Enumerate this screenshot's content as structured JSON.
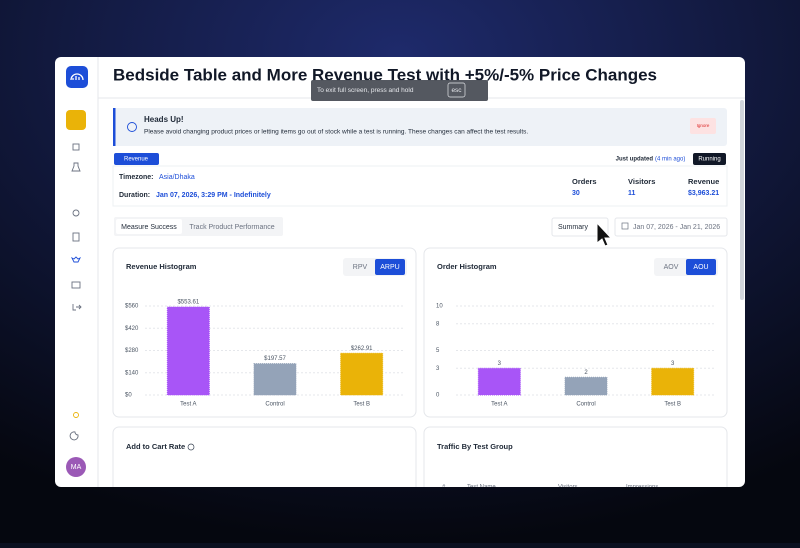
{
  "header": {
    "title": "Bedside Table and More Revenue Test with +5%/-5% Price Changes"
  },
  "fullscreen_notice": {
    "text": "To exit full screen, press and hold",
    "key": "esc"
  },
  "alert": {
    "title": "Heads Up!",
    "text": "Please avoid changing product prices or letting items go out of stock while a test is running. These changes can affect the test results.",
    "button": "Ignore"
  },
  "test": {
    "badge": "Revenue",
    "updated": "Just updated",
    "updated_ago": "(4 min ago)",
    "status": "Running",
    "timezone_label": "Timezone:",
    "timezone": "Asia/Dhaka",
    "duration_label": "Duration:",
    "duration": "Jan 07, 2026, 3:29 PM - Indefinitely",
    "stats": [
      {
        "label": "Orders",
        "value": "30"
      },
      {
        "label": "Visitors",
        "value": "11"
      },
      {
        "label": "Revenue",
        "value": "$3,963.21"
      }
    ]
  },
  "tabs": [
    "Measure Success",
    "Track Product Performance"
  ],
  "view_select": "Summary",
  "date_range": "Jan 07, 2026 - Jan 21, 2026",
  "chart_data": [
    {
      "type": "bar",
      "title": "Revenue Histogram",
      "buttons": [
        "RPV",
        "ARPU"
      ],
      "categories": [
        "Test A",
        "Control",
        "Test B"
      ],
      "values": [
        553.61,
        197.57,
        262.91
      ],
      "value_labels": [
        "$553.61",
        "$197.57",
        "$262.91"
      ],
      "colors": [
        "#a855f7",
        "#94a3b8",
        "#eab308"
      ],
      "ylim": [
        0,
        560
      ],
      "yticks": [
        {
          "value": 0,
          "label": "$0"
        },
        {
          "value": 140,
          "label": "$140"
        },
        {
          "value": 280,
          "label": "$280"
        },
        {
          "value": 420,
          "label": "$420"
        },
        {
          "value": 560,
          "label": "$560"
        }
      ],
      "grid": true
    },
    {
      "type": "bar",
      "title": "Order Histogram",
      "buttons": [
        "AOV",
        "AOU"
      ],
      "categories": [
        "Test A",
        "Control",
        "Test B"
      ],
      "values": [
        3,
        2,
        3
      ],
      "colors": [
        "#a855f7",
        "#94a3b8",
        "#eab308"
      ],
      "ylim": [
        0,
        10
      ],
      "yticks": [
        0,
        3,
        5,
        8,
        10
      ],
      "grid": true
    }
  ],
  "bottom_cards": [
    {
      "title": "Add to Cart Rate"
    },
    {
      "title": "Traffic By Test Group",
      "columns": [
        "#",
        "Test Name",
        "Visitors",
        "Impressions"
      ]
    }
  ],
  "user": {
    "initials": "MA"
  }
}
